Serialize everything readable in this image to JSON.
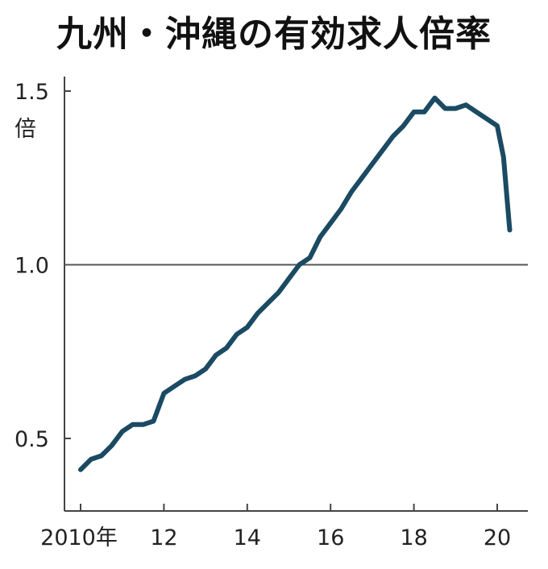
{
  "chart_data": {
    "type": "line",
    "title": "九州・沖縄の有効求人倍率",
    "ylabel": "倍",
    "ylim": [
      0.3,
      1.55
    ],
    "y_ticks": [
      "0.5",
      "1.0",
      "1.5"
    ],
    "xlim": [
      2009.9,
      2020.8
    ],
    "x_ticks": [
      "2010年",
      "12",
      "14",
      "16",
      "18",
      "20"
    ],
    "reference_line": 1.0,
    "series": [
      {
        "color": "#1b4a63",
        "points": [
          [
            2010.0,
            0.41
          ],
          [
            2010.25,
            0.44
          ],
          [
            2010.5,
            0.45
          ],
          [
            2010.75,
            0.48
          ],
          [
            2011.0,
            0.52
          ],
          [
            2011.25,
            0.54
          ],
          [
            2011.5,
            0.54
          ],
          [
            2011.75,
            0.55
          ],
          [
            2012.0,
            0.63
          ],
          [
            2012.25,
            0.65
          ],
          [
            2012.5,
            0.67
          ],
          [
            2012.75,
            0.68
          ],
          [
            2013.0,
            0.7
          ],
          [
            2013.25,
            0.74
          ],
          [
            2013.5,
            0.76
          ],
          [
            2013.75,
            0.8
          ],
          [
            2014.0,
            0.82
          ],
          [
            2014.25,
            0.86
          ],
          [
            2014.5,
            0.89
          ],
          [
            2014.75,
            0.92
          ],
          [
            2015.0,
            0.96
          ],
          [
            2015.25,
            1.0
          ],
          [
            2015.5,
            1.02
          ],
          [
            2015.75,
            1.08
          ],
          [
            2016.0,
            1.12
          ],
          [
            2016.25,
            1.16
          ],
          [
            2016.5,
            1.21
          ],
          [
            2016.75,
            1.25
          ],
          [
            2017.0,
            1.29
          ],
          [
            2017.25,
            1.33
          ],
          [
            2017.5,
            1.37
          ],
          [
            2017.75,
            1.4
          ],
          [
            2018.0,
            1.44
          ],
          [
            2018.25,
            1.44
          ],
          [
            2018.5,
            1.48
          ],
          [
            2018.75,
            1.45
          ],
          [
            2019.0,
            1.45
          ],
          [
            2019.25,
            1.46
          ],
          [
            2019.5,
            1.44
          ],
          [
            2019.75,
            1.42
          ],
          [
            2020.0,
            1.4
          ],
          [
            2020.15,
            1.31
          ],
          [
            2020.3,
            1.1
          ]
        ]
      }
    ]
  }
}
